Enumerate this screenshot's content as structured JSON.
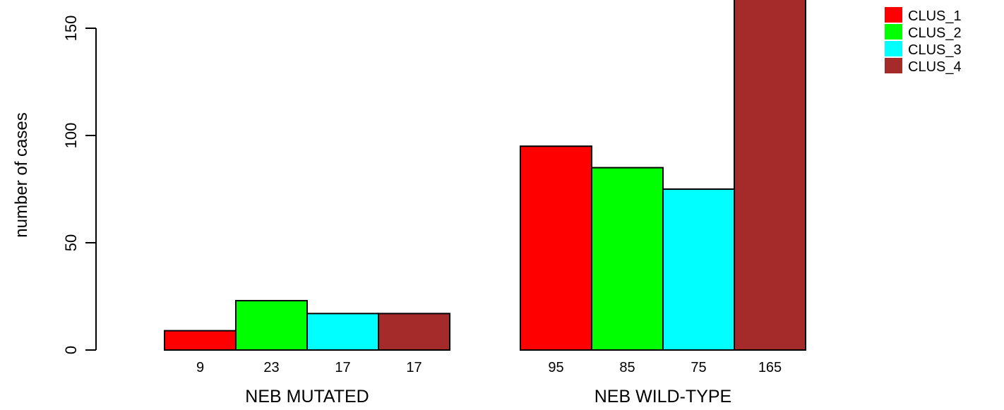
{
  "chart_data": {
    "type": "bar",
    "ylabel": "number of cases",
    "yticks": [
      0,
      50,
      100,
      150
    ],
    "ylim": [
      0,
      165
    ],
    "groups": [
      {
        "name": "NEB MUTATED",
        "values": [
          9,
          23,
          17,
          17
        ]
      },
      {
        "name": "NEB WILD-TYPE",
        "values": [
          95,
          85,
          75,
          165
        ]
      }
    ],
    "series": [
      {
        "name": "CLUS_1",
        "color": "#ff0000"
      },
      {
        "name": "CLUS_2",
        "color": "#00ff00"
      },
      {
        "name": "CLUS_3",
        "color": "#00ffff"
      },
      {
        "name": "CLUS_4",
        "color": "#a52a2a"
      }
    ],
    "legend": "top-right",
    "grid": false
  }
}
